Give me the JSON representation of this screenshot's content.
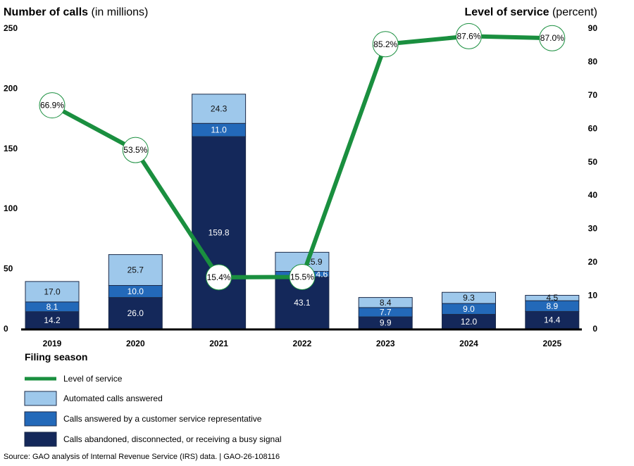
{
  "chart_data": {
    "type": "bar",
    "stacked": true,
    "left_axis": {
      "title_bold": "Number of calls",
      "title_rest": "(in millions)",
      "ylim": [
        0,
        250
      ],
      "ticks": [
        0,
        50,
        100,
        150,
        200,
        250
      ]
    },
    "right_axis": {
      "title_bold": "Level of service",
      "title_rest": "(percent)",
      "ylim": [
        0,
        90
      ],
      "ticks": [
        0,
        10,
        20,
        30,
        40,
        50,
        60,
        70,
        80,
        90
      ]
    },
    "xlabel": "Filing season",
    "categories": [
      "2019",
      "2020",
      "2021",
      "2022",
      "2023",
      "2024",
      "2025"
    ],
    "series": [
      {
        "name": "Calls abandoned, disconnected, or receiving a busy signal",
        "color": "#14285a",
        "values": [
          14.2,
          26.0,
          159.8,
          43.1,
          9.9,
          12.0,
          14.4
        ]
      },
      {
        "name": "Calls answered by a customer service representative",
        "color": "#2369b9",
        "values": [
          8.1,
          10.0,
          11.0,
          4.6,
          7.7,
          9.0,
          8.9
        ]
      },
      {
        "name": "Automated calls answered",
        "color": "#9ec8eb",
        "values": [
          17.0,
          25.7,
          24.3,
          15.9,
          8.4,
          9.3,
          4.5
        ]
      }
    ],
    "line": {
      "name": "Level of service",
      "color": "#1a8f3f",
      "values": [
        66.9,
        53.5,
        15.4,
        15.5,
        85.2,
        87.6,
        87.0
      ],
      "labels": [
        "66.9%",
        "53.5%",
        "15.4%",
        "15.5%",
        "85.2%",
        "87.6%",
        "87.0%"
      ]
    },
    "grid": false,
    "legend_placement": "bottom-left"
  },
  "source": "Source: GAO analysis of Internal Revenue Service (IRS) data.  |  GAO-26-108116"
}
